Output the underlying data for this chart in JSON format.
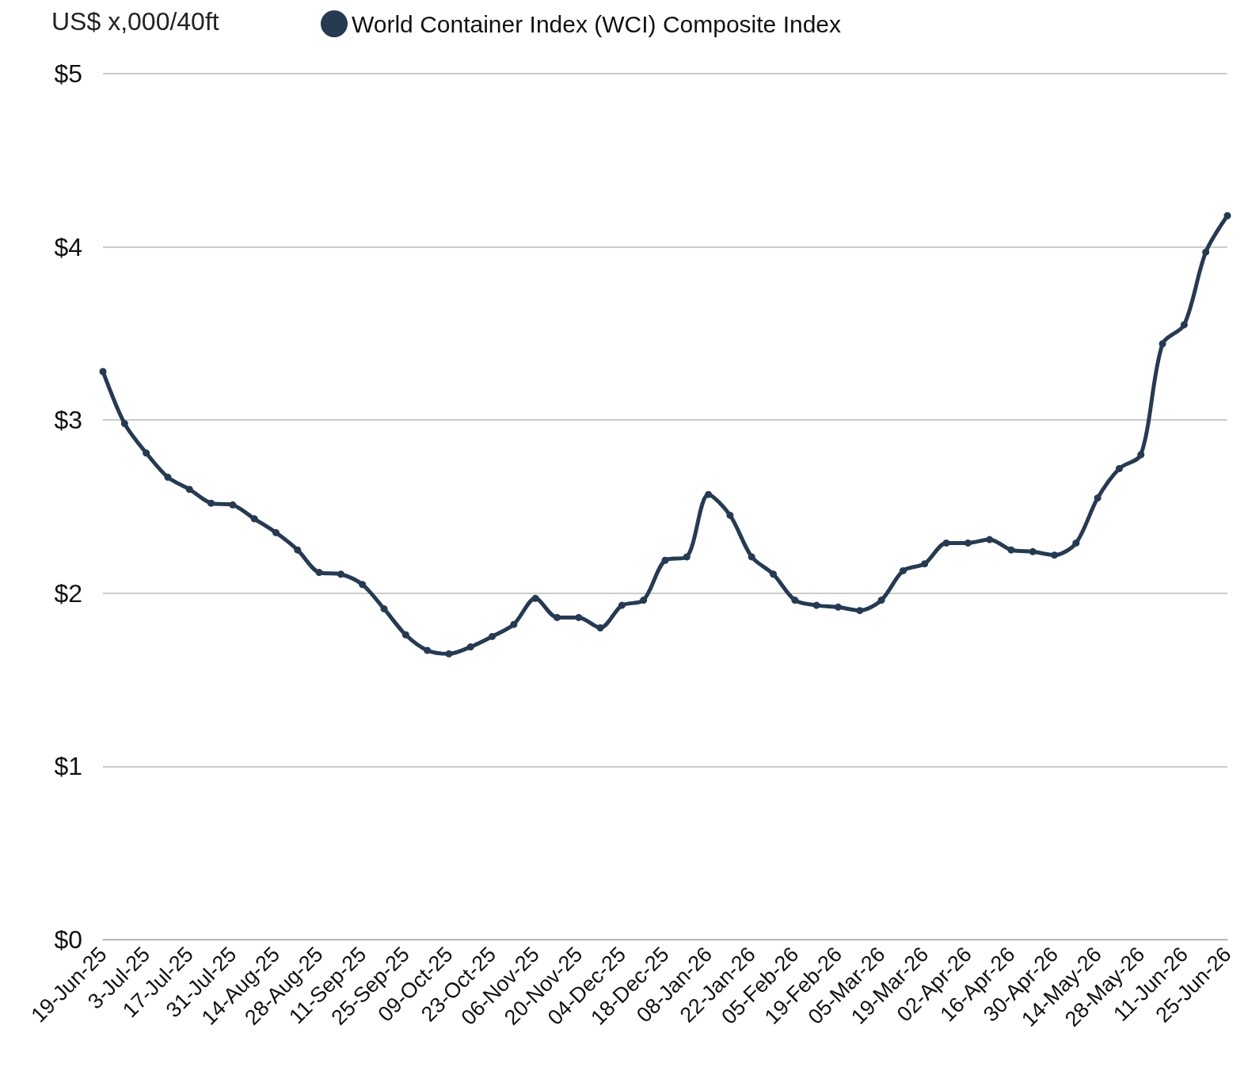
{
  "chart_data": {
    "type": "line",
    "ylabel": "US$ x,000/40ft",
    "categories": [
      "19-Jun-25",
      null,
      "3-Jul-25",
      null,
      "17-Jul-25",
      null,
      "31-Jul-25",
      null,
      "14-Aug-25",
      null,
      "28-Aug-25",
      null,
      "11-Sep-25",
      null,
      "25-Sep-25",
      null,
      "09-Oct-25",
      null,
      "23-Oct-25",
      null,
      "06-Nov-25",
      null,
      "20-Nov-25",
      null,
      "04-Dec-25",
      null,
      "18-Dec-25",
      null,
      "08-Jan-26",
      null,
      "22-Jan-26",
      null,
      "05-Feb-26",
      null,
      "19-Feb-26",
      null,
      "05-Mar-26",
      null,
      "19-Mar-26",
      null,
      "02-Apr-26",
      null,
      "16-Apr-26",
      null,
      "30-Apr-26",
      null,
      "14-May-26",
      null,
      "28-May-26",
      null,
      "11-Jun-26",
      null,
      "25-Jun-26"
    ],
    "series": [
      {
        "name": "World Container Index (WCI) Composite Index",
        "color": "#263a52",
        "values": [
          3.28,
          2.98,
          2.81,
          2.67,
          2.6,
          2.52,
          2.51,
          2.43,
          2.35,
          2.25,
          2.12,
          2.11,
          2.05,
          1.91,
          1.76,
          1.67,
          1.65,
          1.69,
          1.75,
          1.82,
          1.97,
          1.86,
          1.86,
          1.8,
          1.93,
          1.96,
          2.19,
          2.21,
          2.57,
          2.45,
          2.21,
          2.11,
          1.96,
          1.93,
          1.92,
          1.9,
          1.96,
          2.13,
          2.17,
          2.29,
          2.29,
          2.31,
          2.25,
          2.24,
          2.22,
          2.29,
          2.55,
          2.72,
          2.8,
          3.44,
          3.55,
          3.97,
          4.18
        ]
      }
    ],
    "ylim": [
      0,
      5
    ],
    "yticks": [
      {
        "value": 0,
        "label": "$0"
      },
      {
        "value": 1,
        "label": "$1"
      },
      {
        "value": 2,
        "label": "$2"
      },
      {
        "value": 3,
        "label": "$3"
      },
      {
        "value": 4,
        "label": "$4"
      },
      {
        "value": 5,
        "label": "$5"
      }
    ],
    "grid": "y",
    "legend": "top",
    "marker": "circle",
    "line_style": "solid"
  }
}
